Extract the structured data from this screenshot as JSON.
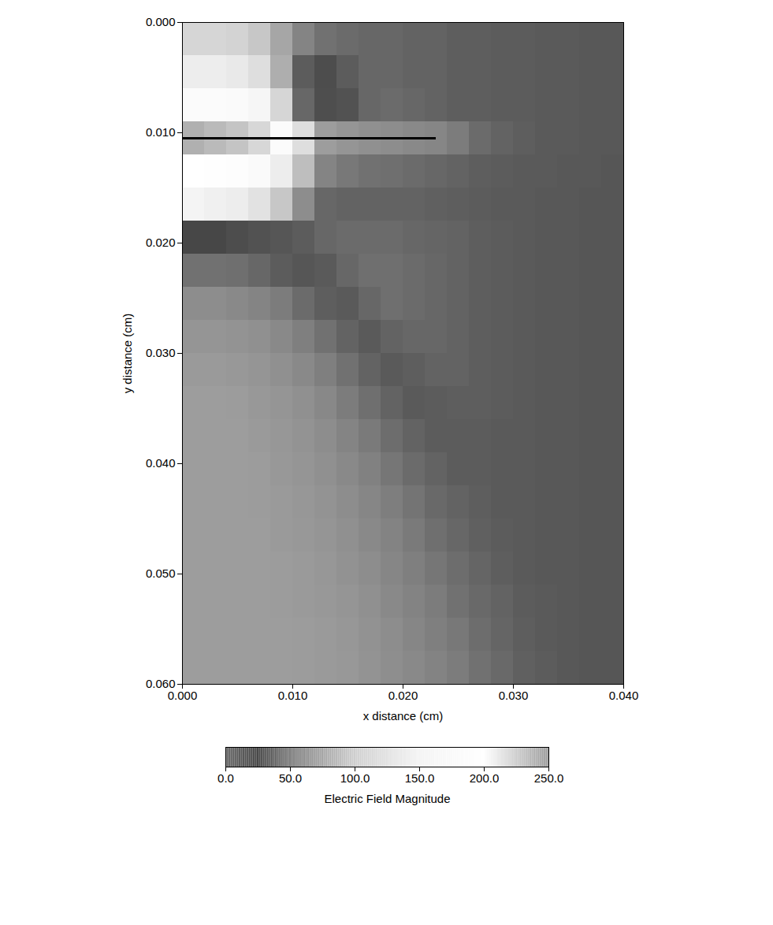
{
  "chart_data": {
    "type": "heatmap",
    "x_label": "x distance (cm)",
    "y_label": "y distance (cm)",
    "xlim": [
      0,
      0.04
    ],
    "ylim": [
      0,
      0.06
    ],
    "xticks": [
      {
        "value": 0,
        "label": "0.000"
      },
      {
        "value": 0.01,
        "label": "0.010"
      },
      {
        "value": 0.02,
        "label": "0.020"
      },
      {
        "value": 0.03,
        "label": "0.030"
      },
      {
        "value": 0.04,
        "label": "0.040"
      }
    ],
    "yticks": [
      {
        "value": 0,
        "label": "0.000"
      },
      {
        "value": 0.01,
        "label": "0.010"
      },
      {
        "value": 0.02,
        "label": "0.020"
      },
      {
        "value": 0.03,
        "label": "0.030"
      },
      {
        "value": 0.04,
        "label": "0.040"
      },
      {
        "value": 0.05,
        "label": "0.050"
      },
      {
        "value": 0.06,
        "label": "0.060"
      }
    ],
    "x": [
      0.001,
      0.003,
      0.005,
      0.007,
      0.009,
      0.011,
      0.013,
      0.015,
      0.017,
      0.019,
      0.021,
      0.023,
      0.025,
      0.027,
      0.029,
      0.031,
      0.033,
      0.035,
      0.037,
      0.039
    ],
    "y": [
      0.0015,
      0.0045,
      0.0075,
      0.0105,
      0.0135,
      0.0165,
      0.0195,
      0.0225,
      0.0255,
      0.0285,
      0.0315,
      0.0345,
      0.0375,
      0.0405,
      0.0435,
      0.0465,
      0.0495,
      0.0525,
      0.0555,
      0.0585
    ],
    "values": [
      [
        110,
        110,
        105,
        95,
        75,
        55,
        45,
        42,
        40,
        40,
        38,
        38,
        36,
        36,
        35,
        35,
        34,
        34,
        33,
        33
      ],
      [
        140,
        140,
        135,
        120,
        80,
        35,
        28,
        35,
        40,
        40,
        38,
        38,
        36,
        36,
        35,
        35,
        34,
        34,
        33,
        33
      ],
      [
        180,
        180,
        175,
        160,
        110,
        40,
        20,
        30,
        40,
        42,
        40,
        38,
        36,
        36,
        35,
        35,
        34,
        34,
        33,
        33
      ],
      [
        240,
        235,
        230,
        220,
        180,
        120,
        70,
        65,
        62,
        60,
        58,
        56,
        50,
        42,
        38,
        36,
        34,
        34,
        33,
        33
      ],
      [
        200,
        195,
        190,
        175,
        140,
        90,
        55,
        48,
        45,
        44,
        42,
        40,
        38,
        36,
        35,
        34,
        34,
        33,
        33,
        32
      ],
      [
        150,
        145,
        140,
        125,
        95,
        60,
        40,
        38,
        38,
        38,
        38,
        37,
        36,
        35,
        34,
        34,
        33,
        33,
        32,
        32
      ],
      [
        25,
        25,
        28,
        30,
        32,
        35,
        40,
        42,
        42,
        42,
        40,
        39,
        38,
        36,
        35,
        34,
        33,
        33,
        32,
        32
      ],
      [
        45,
        45,
        44,
        40,
        35,
        32,
        34,
        40,
        44,
        44,
        42,
        40,
        38,
        36,
        35,
        34,
        33,
        33,
        32,
        32
      ],
      [
        60,
        60,
        58,
        55,
        50,
        42,
        36,
        34,
        40,
        44,
        42,
        40,
        38,
        36,
        35,
        34,
        33,
        33,
        32,
        32
      ],
      [
        65,
        65,
        64,
        62,
        58,
        52,
        45,
        38,
        34,
        38,
        40,
        40,
        38,
        36,
        35,
        34,
        33,
        33,
        32,
        32
      ],
      [
        68,
        68,
        67,
        65,
        62,
        58,
        52,
        45,
        38,
        34,
        36,
        38,
        38,
        36,
        35,
        34,
        33,
        33,
        32,
        32
      ],
      [
        70,
        70,
        69,
        67,
        65,
        62,
        57,
        50,
        44,
        38,
        34,
        35,
        36,
        36,
        35,
        34,
        33,
        33,
        32,
        32
      ],
      [
        70,
        70,
        70,
        68,
        66,
        64,
        60,
        55,
        49,
        43,
        38,
        35,
        35,
        35,
        34,
        34,
        33,
        33,
        32,
        32
      ],
      [
        70,
        70,
        70,
        69,
        67,
        65,
        62,
        58,
        53,
        47,
        42,
        38,
        35,
        35,
        34,
        34,
        33,
        33,
        32,
        32
      ],
      [
        70,
        70,
        70,
        69,
        68,
        66,
        64,
        60,
        56,
        51,
        46,
        41,
        38,
        36,
        34,
        34,
        33,
        33,
        32,
        32
      ],
      [
        70,
        70,
        70,
        70,
        68,
        67,
        65,
        62,
        58,
        54,
        49,
        44,
        40,
        37,
        35,
        34,
        33,
        33,
        32,
        32
      ],
      [
        70,
        70,
        70,
        70,
        69,
        68,
        66,
        63,
        60,
        56,
        52,
        47,
        43,
        39,
        36,
        34,
        33,
        33,
        32,
        32
      ],
      [
        70,
        70,
        70,
        70,
        69,
        68,
        67,
        65,
        62,
        58,
        54,
        50,
        45,
        41,
        38,
        35,
        34,
        33,
        32,
        32
      ],
      [
        70,
        70,
        70,
        70,
        70,
        69,
        68,
        66,
        63,
        60,
        56,
        52,
        48,
        43,
        39,
        36,
        34,
        33,
        32,
        32
      ],
      [
        70,
        70,
        70,
        70,
        70,
        69,
        68,
        67,
        64,
        61,
        58,
        54,
        50,
        45,
        41,
        37,
        35,
        33,
        32,
        32
      ]
    ],
    "lines": [
      {
        "x": [
          0,
          0.023
        ],
        "y": 0.0105
      }
    ],
    "colorbar": {
      "label": "Electric Field Magnitude",
      "range": [
        0,
        250
      ],
      "ticks": [
        {
          "value": 0,
          "label": "0.0"
        },
        {
          "value": 50,
          "label": "50.0"
        },
        {
          "value": 100,
          "label": "100.0"
        },
        {
          "value": 150,
          "label": "150.0"
        },
        {
          "value": 200,
          "label": "200.0"
        },
        {
          "value": 250,
          "label": "250.0"
        }
      ]
    }
  }
}
